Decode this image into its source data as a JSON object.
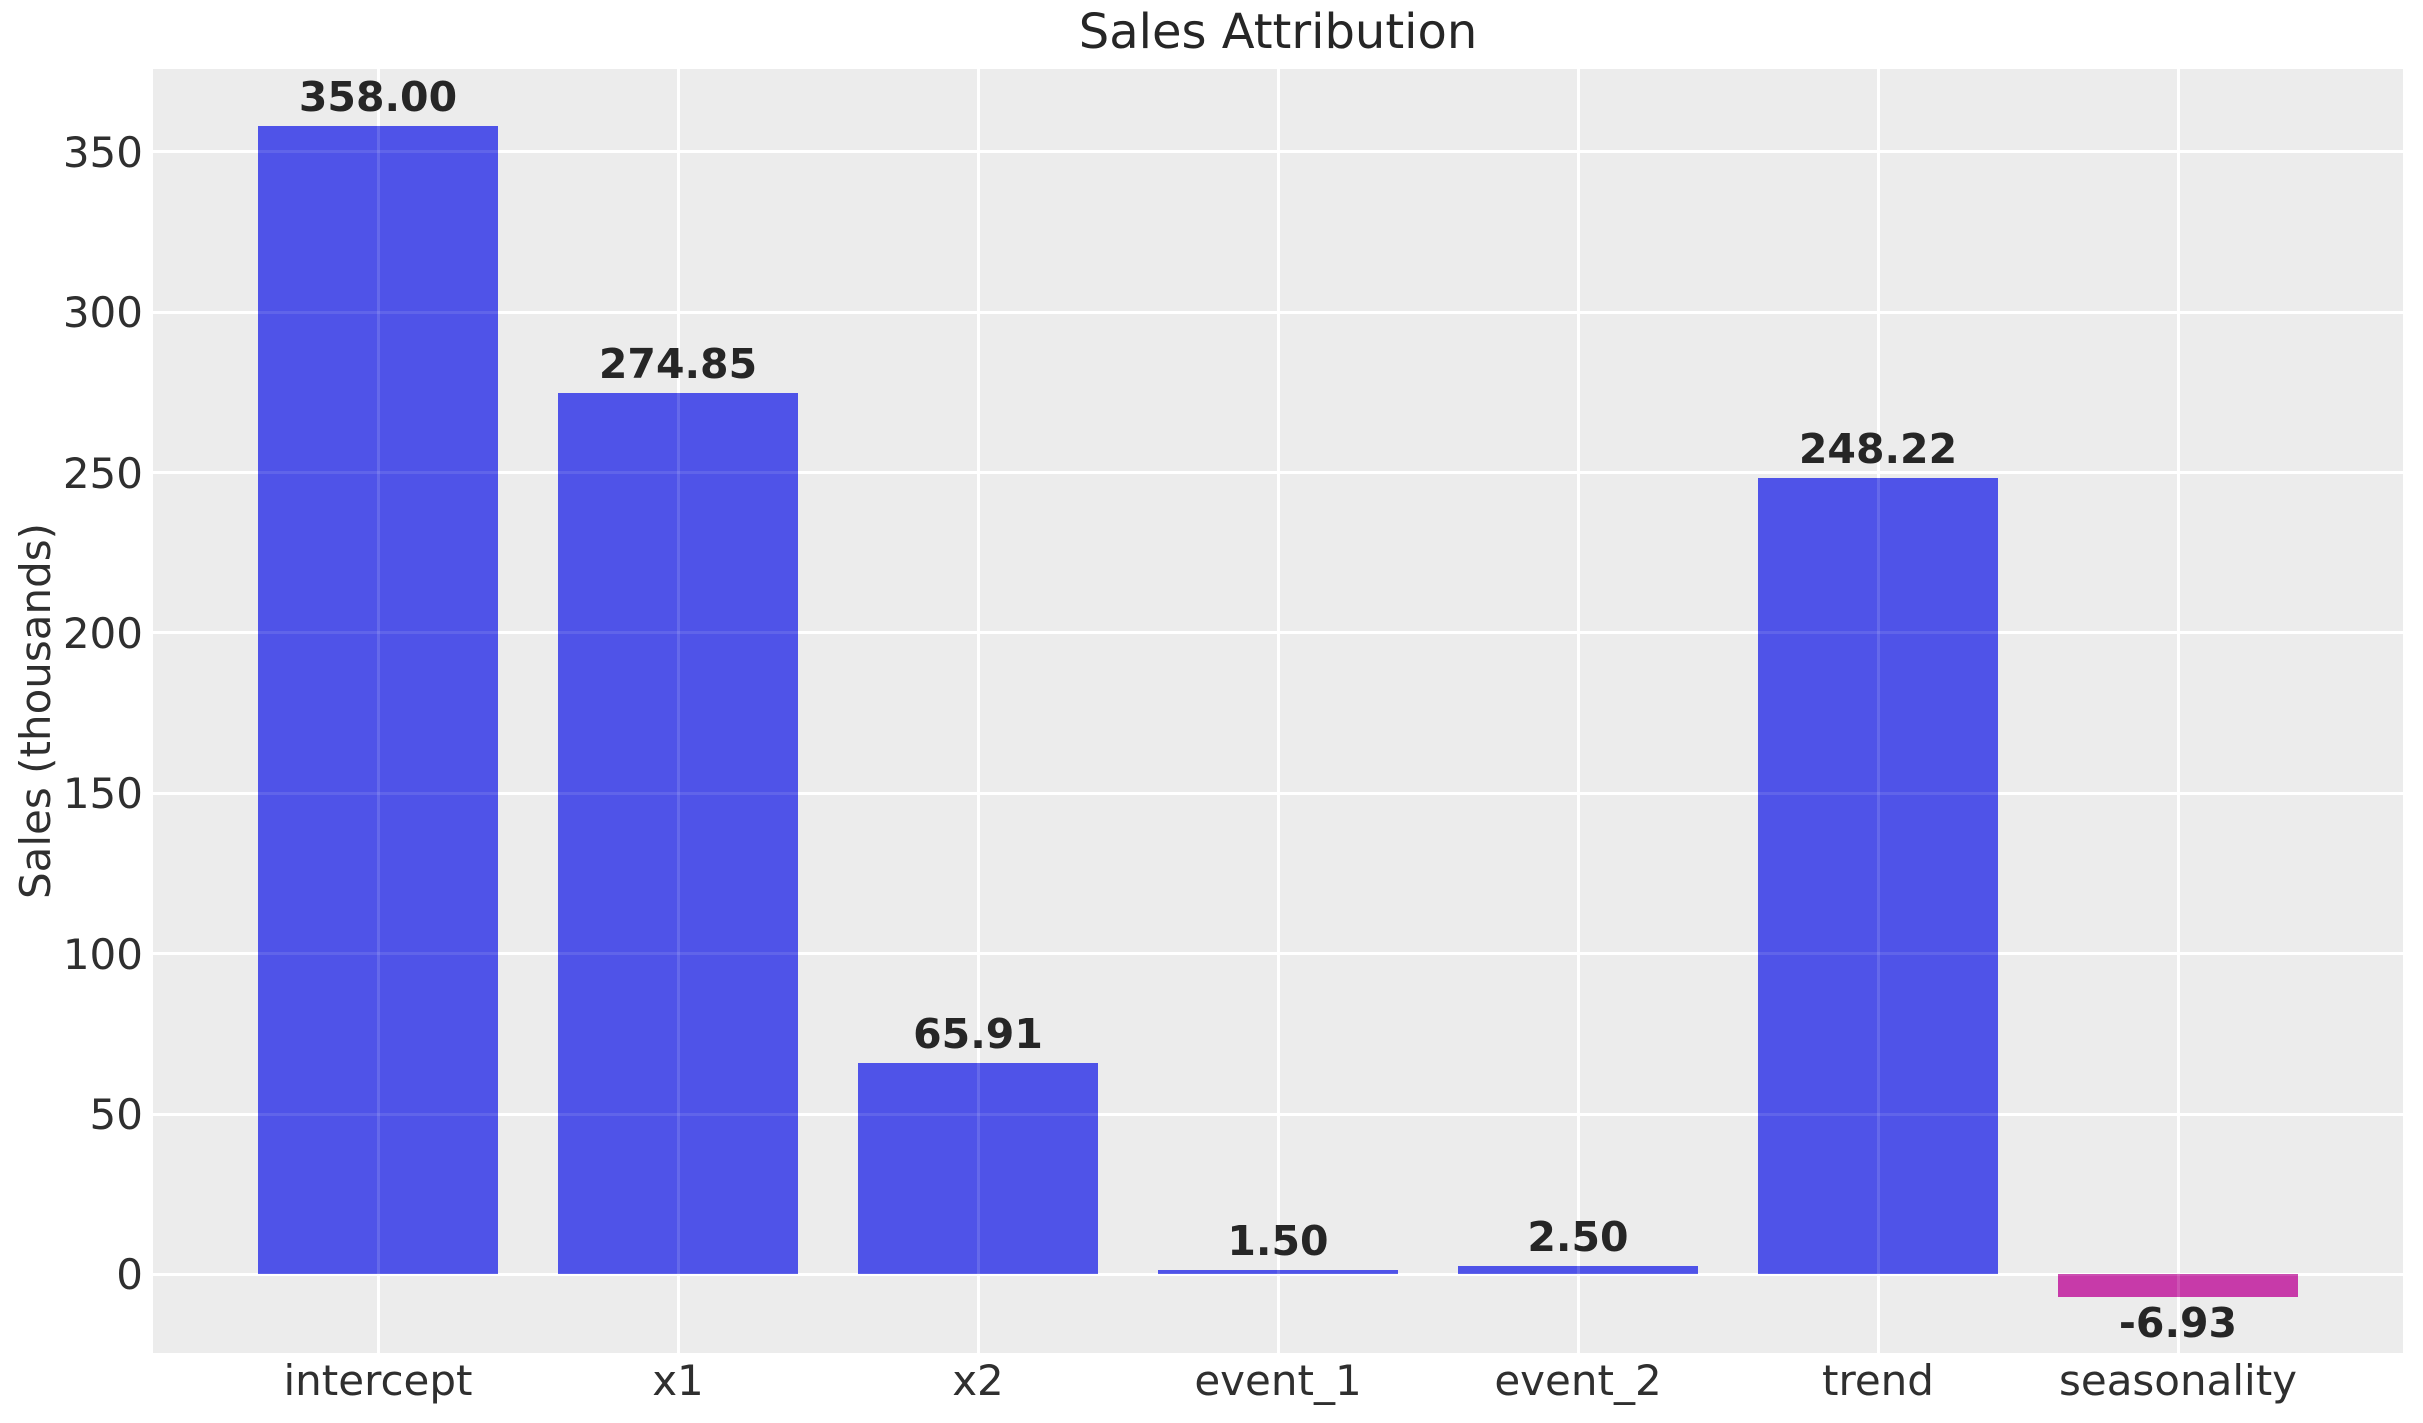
{
  "chart_data": {
    "type": "bar",
    "title": "Sales Attribution",
    "xlabel": "",
    "ylabel": "Sales (thousands)",
    "categories": [
      "intercept",
      "x1",
      "x2",
      "event_1",
      "event_2",
      "trend",
      "seasonality"
    ],
    "values": [
      358.0,
      274.85,
      65.91,
      1.5,
      2.5,
      248.22,
      -6.93
    ],
    "bar_labels": [
      "358.00",
      "274.85",
      "65.91",
      "1.50",
      "2.50",
      "248.22",
      "-6.93"
    ],
    "yticks": [
      0,
      50,
      100,
      150,
      200,
      250,
      300,
      350
    ],
    "ytick_labels": [
      "0",
      "50",
      "100",
      "150",
      "200",
      "250",
      "300",
      "350"
    ],
    "ylim": [
      -24.5,
      375.8
    ],
    "xlim": [
      -0.75,
      6.75
    ],
    "bar_width": 0.8,
    "grid": true,
    "legend": false,
    "colors": {
      "positive_bar": "#4F53E8",
      "negative_bar": "#C73AA9",
      "plot_background": "#ECECEC",
      "gridline": "#FFFFFF",
      "figure_background": "#FFFFFF",
      "title_text": "#262626",
      "tick_text": "#2F2F2F",
      "bar_label_text": "#262626"
    }
  }
}
